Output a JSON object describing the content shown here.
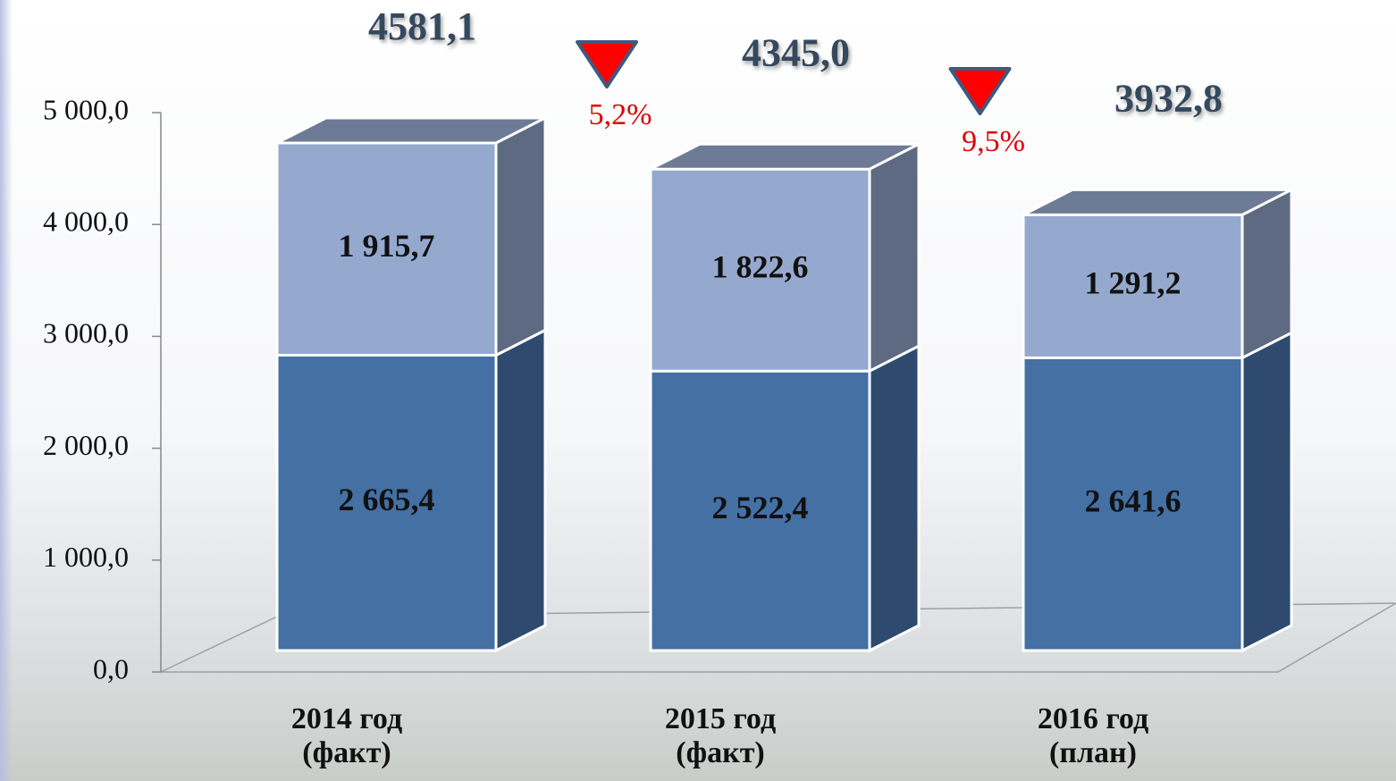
{
  "chart_data": {
    "type": "bar3d_stacked",
    "categories": [
      "2014 год (факт)",
      "2015 год (факт)",
      "2016 год (план)"
    ],
    "series": [
      {
        "color": "#4470a4",
        "side_color": "#2e4a6e",
        "values": [
          2665.4,
          2522.4,
          2641.6
        ],
        "value_labels": [
          "2 665,4",
          "2 522,4",
          "2 641,6"
        ]
      },
      {
        "color": "#95a9cf",
        "side_color": "#5d6a82",
        "values": [
          1915.7,
          1822.6,
          1291.2
        ],
        "value_labels": [
          "1 915,7",
          "1 822,6",
          "1 291,2"
        ]
      }
    ],
    "totals": [
      4581.1,
      4345.0,
      3932.8
    ],
    "total_labels": [
      "4581,1",
      "4345,0",
      "3932,8"
    ],
    "changes": [
      {
        "value": 5.2,
        "label": "5,2%"
      },
      {
        "value": 9.5,
        "label": "9,5%"
      }
    ],
    "ylim": [
      0,
      5000
    ],
    "yticks": [
      {
        "value": 0,
        "label": "0,0"
      },
      {
        "value": 1000,
        "label": "1 000,0"
      },
      {
        "value": 2000,
        "label": "2 000,0"
      },
      {
        "value": 3000,
        "label": "3 000,0"
      },
      {
        "value": 4000,
        "label": "4 000,0"
      },
      {
        "value": 5000,
        "label": "5 000,0"
      }
    ]
  }
}
